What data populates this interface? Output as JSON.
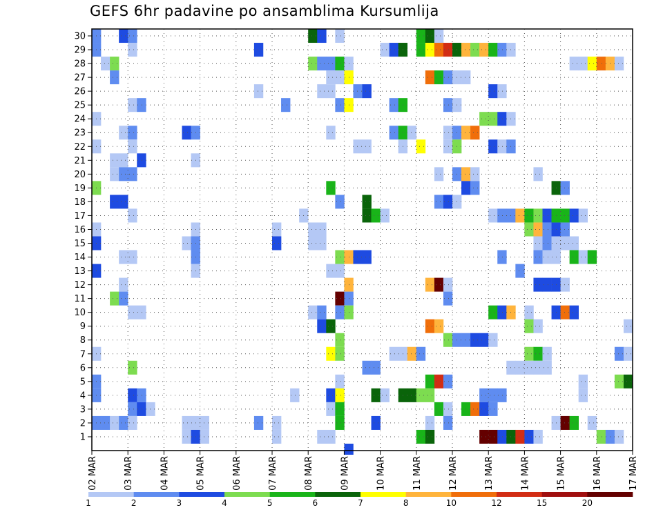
{
  "chart_data": {
    "type": "heatmap",
    "title": "GEFS 6hr padavine po ansamblima Kursumlija",
    "x_tick_labels": [
      "02 MAR",
      "03 MAR",
      "04 MAR",
      "05 MAR",
      "06 MAR",
      "07 MAR",
      "08 MAR",
      "09 MAR",
      "10 MAR",
      "11 MAR",
      "12 MAR",
      "13 MAR",
      "14 MAR",
      "15 MAR",
      "16 MAR",
      "17 MAR"
    ],
    "y_tick_labels": [
      "1",
      "2",
      "3",
      "4",
      "5",
      "6",
      "7",
      "8",
      "9",
      "10",
      "11",
      "12",
      "13",
      "14",
      "15",
      "16",
      "17",
      "18",
      "19",
      "20",
      "21",
      "22",
      "23",
      "24",
      "25",
      "26",
      "27",
      "28",
      "29",
      "30"
    ],
    "x_steps_per_day": 4,
    "x_steps_total": 60,
    "y_members": 30,
    "grid": true,
    "legend": {
      "position": "bottom",
      "levels": [
        "1",
        "2",
        "3",
        "4",
        "5",
        "6",
        "7",
        "8",
        "10",
        "12",
        "15",
        "20"
      ],
      "colors": [
        "#b4c8f5",
        "#5f8cf0",
        "#1e4be1",
        "#7ddc50",
        "#19b419",
        "#0a640a",
        "#ffff00",
        "#ffb43c",
        "#f06e0a",
        "#d22d14",
        "#a00f0f",
        "#640000"
      ]
    },
    "cells": [
      [
        30,
        0.5,
        2
      ],
      [
        30,
        3.5,
        3
      ],
      [
        30,
        4.5,
        2
      ],
      [
        30,
        24.5,
        6
      ],
      [
        30,
        25.5,
        3
      ],
      [
        30,
        27.5,
        1
      ],
      [
        30,
        36.5,
        5
      ],
      [
        30,
        37.5,
        6
      ],
      [
        30,
        38.5,
        1
      ],
      [
        29,
        0.5,
        2
      ],
      [
        29,
        4.5,
        1
      ],
      [
        29,
        18.5,
        3
      ],
      [
        29,
        32.5,
        1
      ],
      [
        29,
        33.5,
        3
      ],
      [
        29,
        34.5,
        6
      ],
      [
        29,
        36.5,
        5
      ],
      [
        29,
        37.5,
        7
      ],
      [
        29,
        38.5,
        10
      ],
      [
        29,
        39.5,
        12
      ],
      [
        29,
        40.5,
        6
      ],
      [
        29,
        41.5,
        8
      ],
      [
        29,
        42.5,
        4
      ],
      [
        29,
        43.5,
        8
      ],
      [
        29,
        44.5,
        5
      ],
      [
        29,
        45.5,
        2
      ],
      [
        29,
        46.5,
        1
      ],
      [
        28,
        1.5,
        1
      ],
      [
        28,
        2.5,
        4
      ],
      [
        28,
        24.5,
        4
      ],
      [
        28,
        25.5,
        2
      ],
      [
        28,
        26.5,
        2
      ],
      [
        28,
        27.5,
        5
      ],
      [
        28,
        28.5,
        1
      ],
      [
        28,
        53.5,
        1
      ],
      [
        28,
        54.5,
        1
      ],
      [
        28,
        55.5,
        7
      ],
      [
        28,
        56.5,
        10
      ],
      [
        28,
        57.5,
        8
      ],
      [
        28,
        58.5,
        1
      ],
      [
        27,
        2.5,
        2
      ],
      [
        27,
        26.5,
        1
      ],
      [
        27,
        27.5,
        1
      ],
      [
        27,
        28.5,
        7
      ],
      [
        27,
        37.5,
        10
      ],
      [
        27,
        38.5,
        5
      ],
      [
        27,
        39.5,
        2
      ],
      [
        27,
        40.5,
        1
      ],
      [
        27,
        41.5,
        1
      ],
      [
        26,
        18.5,
        1
      ],
      [
        26,
        25.5,
        1
      ],
      [
        26,
        26.5,
        1
      ],
      [
        26,
        29.5,
        2
      ],
      [
        26,
        30.5,
        3
      ],
      [
        26,
        44.5,
        3
      ],
      [
        26,
        45.5,
        1
      ],
      [
        25,
        4.5,
        1
      ],
      [
        25,
        5.5,
        2
      ],
      [
        25,
        21.5,
        2
      ],
      [
        25,
        27.5,
        2
      ],
      [
        25,
        28.5,
        7
      ],
      [
        25,
        33.5,
        2
      ],
      [
        25,
        34.5,
        5
      ],
      [
        25,
        39.5,
        2
      ],
      [
        25,
        40.5,
        1
      ],
      [
        24,
        0.5,
        1
      ],
      [
        24,
        43.5,
        4
      ],
      [
        24,
        44.5,
        4
      ],
      [
        24,
        45.5,
        3
      ],
      [
        24,
        46.5,
        1
      ],
      [
        23,
        3.5,
        1
      ],
      [
        23,
        4.5,
        2
      ],
      [
        23,
        10.5,
        3
      ],
      [
        23,
        11.5,
        2
      ],
      [
        23,
        26.5,
        1
      ],
      [
        23,
        33.5,
        2
      ],
      [
        23,
        34.5,
        5
      ],
      [
        23,
        35.5,
        1
      ],
      [
        23,
        39.5,
        1
      ],
      [
        23,
        40.5,
        2
      ],
      [
        23,
        41.5,
        8
      ],
      [
        23,
        42.5,
        10
      ],
      [
        22,
        0.5,
        1
      ],
      [
        22,
        4.5,
        1
      ],
      [
        22,
        29.5,
        1
      ],
      [
        22,
        30.5,
        1
      ],
      [
        22,
        34.5,
        1
      ],
      [
        22,
        36.5,
        7
      ],
      [
        22,
        39.5,
        1
      ],
      [
        22,
        40.5,
        4
      ],
      [
        22,
        44.5,
        3
      ],
      [
        22,
        45.5,
        1
      ],
      [
        22,
        46.5,
        2
      ],
      [
        21,
        2.5,
        1
      ],
      [
        21,
        3.5,
        1
      ],
      [
        21,
        5.5,
        3
      ],
      [
        21,
        11.5,
        1
      ],
      [
        20,
        2.5,
        1
      ],
      [
        20,
        3.5,
        2
      ],
      [
        20,
        4.5,
        2
      ],
      [
        20,
        38.5,
        1
      ],
      [
        20,
        40.5,
        2
      ],
      [
        20,
        41.5,
        8
      ],
      [
        20,
        42.5,
        1
      ],
      [
        20,
        49.5,
        1
      ],
      [
        19,
        0.5,
        4
      ],
      [
        19,
        26.5,
        5
      ],
      [
        19,
        41.5,
        3
      ],
      [
        19,
        42.5,
        2
      ],
      [
        19,
        51.5,
        6
      ],
      [
        19,
        52.5,
        2
      ],
      [
        18,
        2.5,
        3
      ],
      [
        18,
        3.5,
        3
      ],
      [
        18,
        27.5,
        2
      ],
      [
        18,
        30.5,
        6
      ],
      [
        18,
        38.5,
        2
      ],
      [
        18,
        39.5,
        3
      ],
      [
        18,
        40.5,
        1
      ],
      [
        17,
        4.5,
        1
      ],
      [
        17,
        23.5,
        1
      ],
      [
        17,
        30.5,
        6
      ],
      [
        17,
        31.5,
        5
      ],
      [
        17,
        32.5,
        1
      ],
      [
        17,
        44.5,
        1
      ],
      [
        17,
        45.5,
        2
      ],
      [
        17,
        46.5,
        2
      ],
      [
        17,
        47.5,
        8
      ],
      [
        17,
        48.5,
        5
      ],
      [
        17,
        49.5,
        4
      ],
      [
        17,
        50.5,
        3
      ],
      [
        17,
        51.5,
        5
      ],
      [
        17,
        52.5,
        5
      ],
      [
        17,
        53.5,
        3
      ],
      [
        17,
        54.5,
        1
      ],
      [
        16,
        0.5,
        1
      ],
      [
        16,
        11.5,
        1
      ],
      [
        16,
        20.5,
        1
      ],
      [
        16,
        24.5,
        1
      ],
      [
        16,
        25.5,
        1
      ],
      [
        16,
        48.5,
        4
      ],
      [
        16,
        49.5,
        8
      ],
      [
        16,
        50.5,
        2
      ],
      [
        16,
        51.5,
        3
      ],
      [
        16,
        52.5,
        2
      ],
      [
        15,
        0.5,
        3
      ],
      [
        15,
        10.5,
        1
      ],
      [
        15,
        11.5,
        2
      ],
      [
        15,
        20.5,
        3
      ],
      [
        15,
        24.5,
        1
      ],
      [
        15,
        25.5,
        1
      ],
      [
        15,
        49.5,
        1
      ],
      [
        15,
        50.5,
        2
      ],
      [
        15,
        51.5,
        1
      ],
      [
        15,
        52.5,
        1
      ],
      [
        15,
        53.5,
        1
      ],
      [
        14,
        3.5,
        1
      ],
      [
        14,
        4.5,
        1
      ],
      [
        14,
        11.5,
        2
      ],
      [
        14,
        27.5,
        4
      ],
      [
        14,
        28.5,
        8
      ],
      [
        14,
        29.5,
        3
      ],
      [
        14,
        30.5,
        3
      ],
      [
        14,
        45.5,
        2
      ],
      [
        14,
        49.5,
        2
      ],
      [
        14,
        50.5,
        1
      ],
      [
        14,
        51.5,
        1
      ],
      [
        14,
        53.5,
        5
      ],
      [
        14,
        54.5,
        1
      ],
      [
        14,
        55.5,
        5
      ],
      [
        13,
        0.5,
        3
      ],
      [
        13,
        11.5,
        1
      ],
      [
        13,
        26.5,
        1
      ],
      [
        13,
        27.5,
        1
      ],
      [
        13,
        47.5,
        2
      ],
      [
        12,
        3.5,
        1
      ],
      [
        12,
        28.5,
        8
      ],
      [
        12,
        37.5,
        8
      ],
      [
        12,
        38.5,
        20
      ],
      [
        12,
        39.5,
        1
      ],
      [
        12,
        49.5,
        3
      ],
      [
        12,
        50.5,
        3
      ],
      [
        12,
        51.5,
        3
      ],
      [
        12,
        52.5,
        1
      ],
      [
        11,
        2.5,
        4
      ],
      [
        11,
        3.5,
        2
      ],
      [
        11,
        27.5,
        20
      ],
      [
        11,
        28.5,
        2
      ],
      [
        11,
        39.5,
        2
      ],
      [
        10,
        4.5,
        1
      ],
      [
        10,
        5.5,
        1
      ],
      [
        10,
        24.5,
        1
      ],
      [
        10,
        25.5,
        2
      ],
      [
        10,
        27.5,
        2
      ],
      [
        10,
        28.5,
        4
      ],
      [
        10,
        44.5,
        5
      ],
      [
        10,
        45.5,
        3
      ],
      [
        10,
        46.5,
        8
      ],
      [
        10,
        48.5,
        1
      ],
      [
        10,
        51.5,
        3
      ],
      [
        10,
        52.5,
        10
      ],
      [
        10,
        53.5,
        3
      ],
      [
        9,
        25.5,
        3
      ],
      [
        9,
        26.5,
        6
      ],
      [
        9,
        37.5,
        10
      ],
      [
        9,
        38.5,
        8
      ],
      [
        9,
        48.5,
        4
      ],
      [
        9,
        49.5,
        1
      ],
      [
        9,
        59.5,
        1
      ],
      [
        8,
        27.5,
        4
      ],
      [
        8,
        39.5,
        4
      ],
      [
        8,
        40.5,
        2
      ],
      [
        8,
        41.5,
        2
      ],
      [
        8,
        42.5,
        3
      ],
      [
        8,
        43.5,
        3
      ],
      [
        8,
        44.5,
        1
      ],
      [
        7,
        0.5,
        1
      ],
      [
        7,
        26.5,
        7
      ],
      [
        7,
        27.5,
        4
      ],
      [
        7,
        33.5,
        1
      ],
      [
        7,
        34.5,
        1
      ],
      [
        7,
        35.5,
        8
      ],
      [
        7,
        36.5,
        2
      ],
      [
        7,
        48.5,
        4
      ],
      [
        7,
        49.5,
        5
      ],
      [
        7,
        50.5,
        1
      ],
      [
        7,
        58.5,
        2
      ],
      [
        7,
        59.5,
        1
      ],
      [
        6,
        4.5,
        4
      ],
      [
        6,
        30.5,
        2
      ],
      [
        6,
        31.5,
        2
      ],
      [
        6,
        46.5,
        1
      ],
      [
        6,
        47.5,
        1
      ],
      [
        6,
        48.5,
        1
      ],
      [
        6,
        49.5,
        1
      ],
      [
        6,
        50.5,
        1
      ],
      [
        5,
        0.5,
        2
      ],
      [
        5,
        27.5,
        1
      ],
      [
        5,
        37.5,
        5
      ],
      [
        5,
        38.5,
        12
      ],
      [
        5,
        39.5,
        2
      ],
      [
        5,
        54.5,
        1
      ],
      [
        5,
        58.5,
        4
      ],
      [
        5,
        59.5,
        6
      ],
      [
        4,
        0.5,
        2
      ],
      [
        4,
        4.5,
        3
      ],
      [
        4,
        5.5,
        2
      ],
      [
        4,
        22.5,
        1
      ],
      [
        4,
        26.5,
        3
      ],
      [
        4,
        27.5,
        7
      ],
      [
        4,
        31.5,
        6
      ],
      [
        4,
        32.5,
        1
      ],
      [
        4,
        34.5,
        6
      ],
      [
        4,
        35.5,
        6
      ],
      [
        4,
        36.5,
        4
      ],
      [
        4,
        37.5,
        4
      ],
      [
        4,
        43.5,
        2
      ],
      [
        4,
        44.5,
        2
      ],
      [
        4,
        45.5,
        2
      ],
      [
        4,
        54.5,
        1
      ],
      [
        3,
        4.5,
        2
      ],
      [
        3,
        5.5,
        3
      ],
      [
        3,
        6.5,
        1
      ],
      [
        3,
        26.5,
        1
      ],
      [
        3,
        27.5,
        5
      ],
      [
        3,
        38.5,
        5
      ],
      [
        3,
        39.5,
        1
      ],
      [
        3,
        41.5,
        5
      ],
      [
        3,
        42.5,
        10
      ],
      [
        3,
        43.5,
        3
      ],
      [
        3,
        44.5,
        2
      ],
      [
        2,
        0.5,
        2
      ],
      [
        2,
        1.5,
        2
      ],
      [
        2,
        2.5,
        1
      ],
      [
        2,
        3.5,
        2
      ],
      [
        2,
        4.5,
        1
      ],
      [
        2,
        10.5,
        1
      ],
      [
        2,
        11.5,
        1
      ],
      [
        2,
        12.5,
        1
      ],
      [
        2,
        18.5,
        2
      ],
      [
        2,
        20.5,
        1
      ],
      [
        2,
        27.5,
        5
      ],
      [
        2,
        31.5,
        3
      ],
      [
        2,
        37.5,
        1
      ],
      [
        2,
        39.5,
        2
      ],
      [
        2,
        51.5,
        1
      ],
      [
        2,
        52.5,
        20
      ],
      [
        2,
        53.5,
        5
      ],
      [
        2,
        55.5,
        1
      ],
      [
        1,
        10.5,
        1
      ],
      [
        1,
        11.5,
        3
      ],
      [
        1,
        12.5,
        1
      ],
      [
        1,
        20.5,
        1
      ],
      [
        1,
        25.5,
        1
      ],
      [
        1,
        26.5,
        1
      ],
      [
        1,
        36.5,
        5
      ],
      [
        1,
        37.5,
        6
      ],
      [
        1,
        43.5,
        20
      ],
      [
        1,
        44.5,
        20
      ],
      [
        1,
        45.5,
        3
      ],
      [
        1,
        46.5,
        6
      ],
      [
        1,
        47.5,
        12
      ],
      [
        1,
        48.5,
        3
      ],
      [
        1,
        49.5,
        1
      ],
      [
        1,
        56.5,
        4
      ],
      [
        1,
        57.5,
        2
      ],
      [
        1,
        58.5,
        1
      ],
      [
        0,
        28.5,
        3
      ]
    ]
  }
}
